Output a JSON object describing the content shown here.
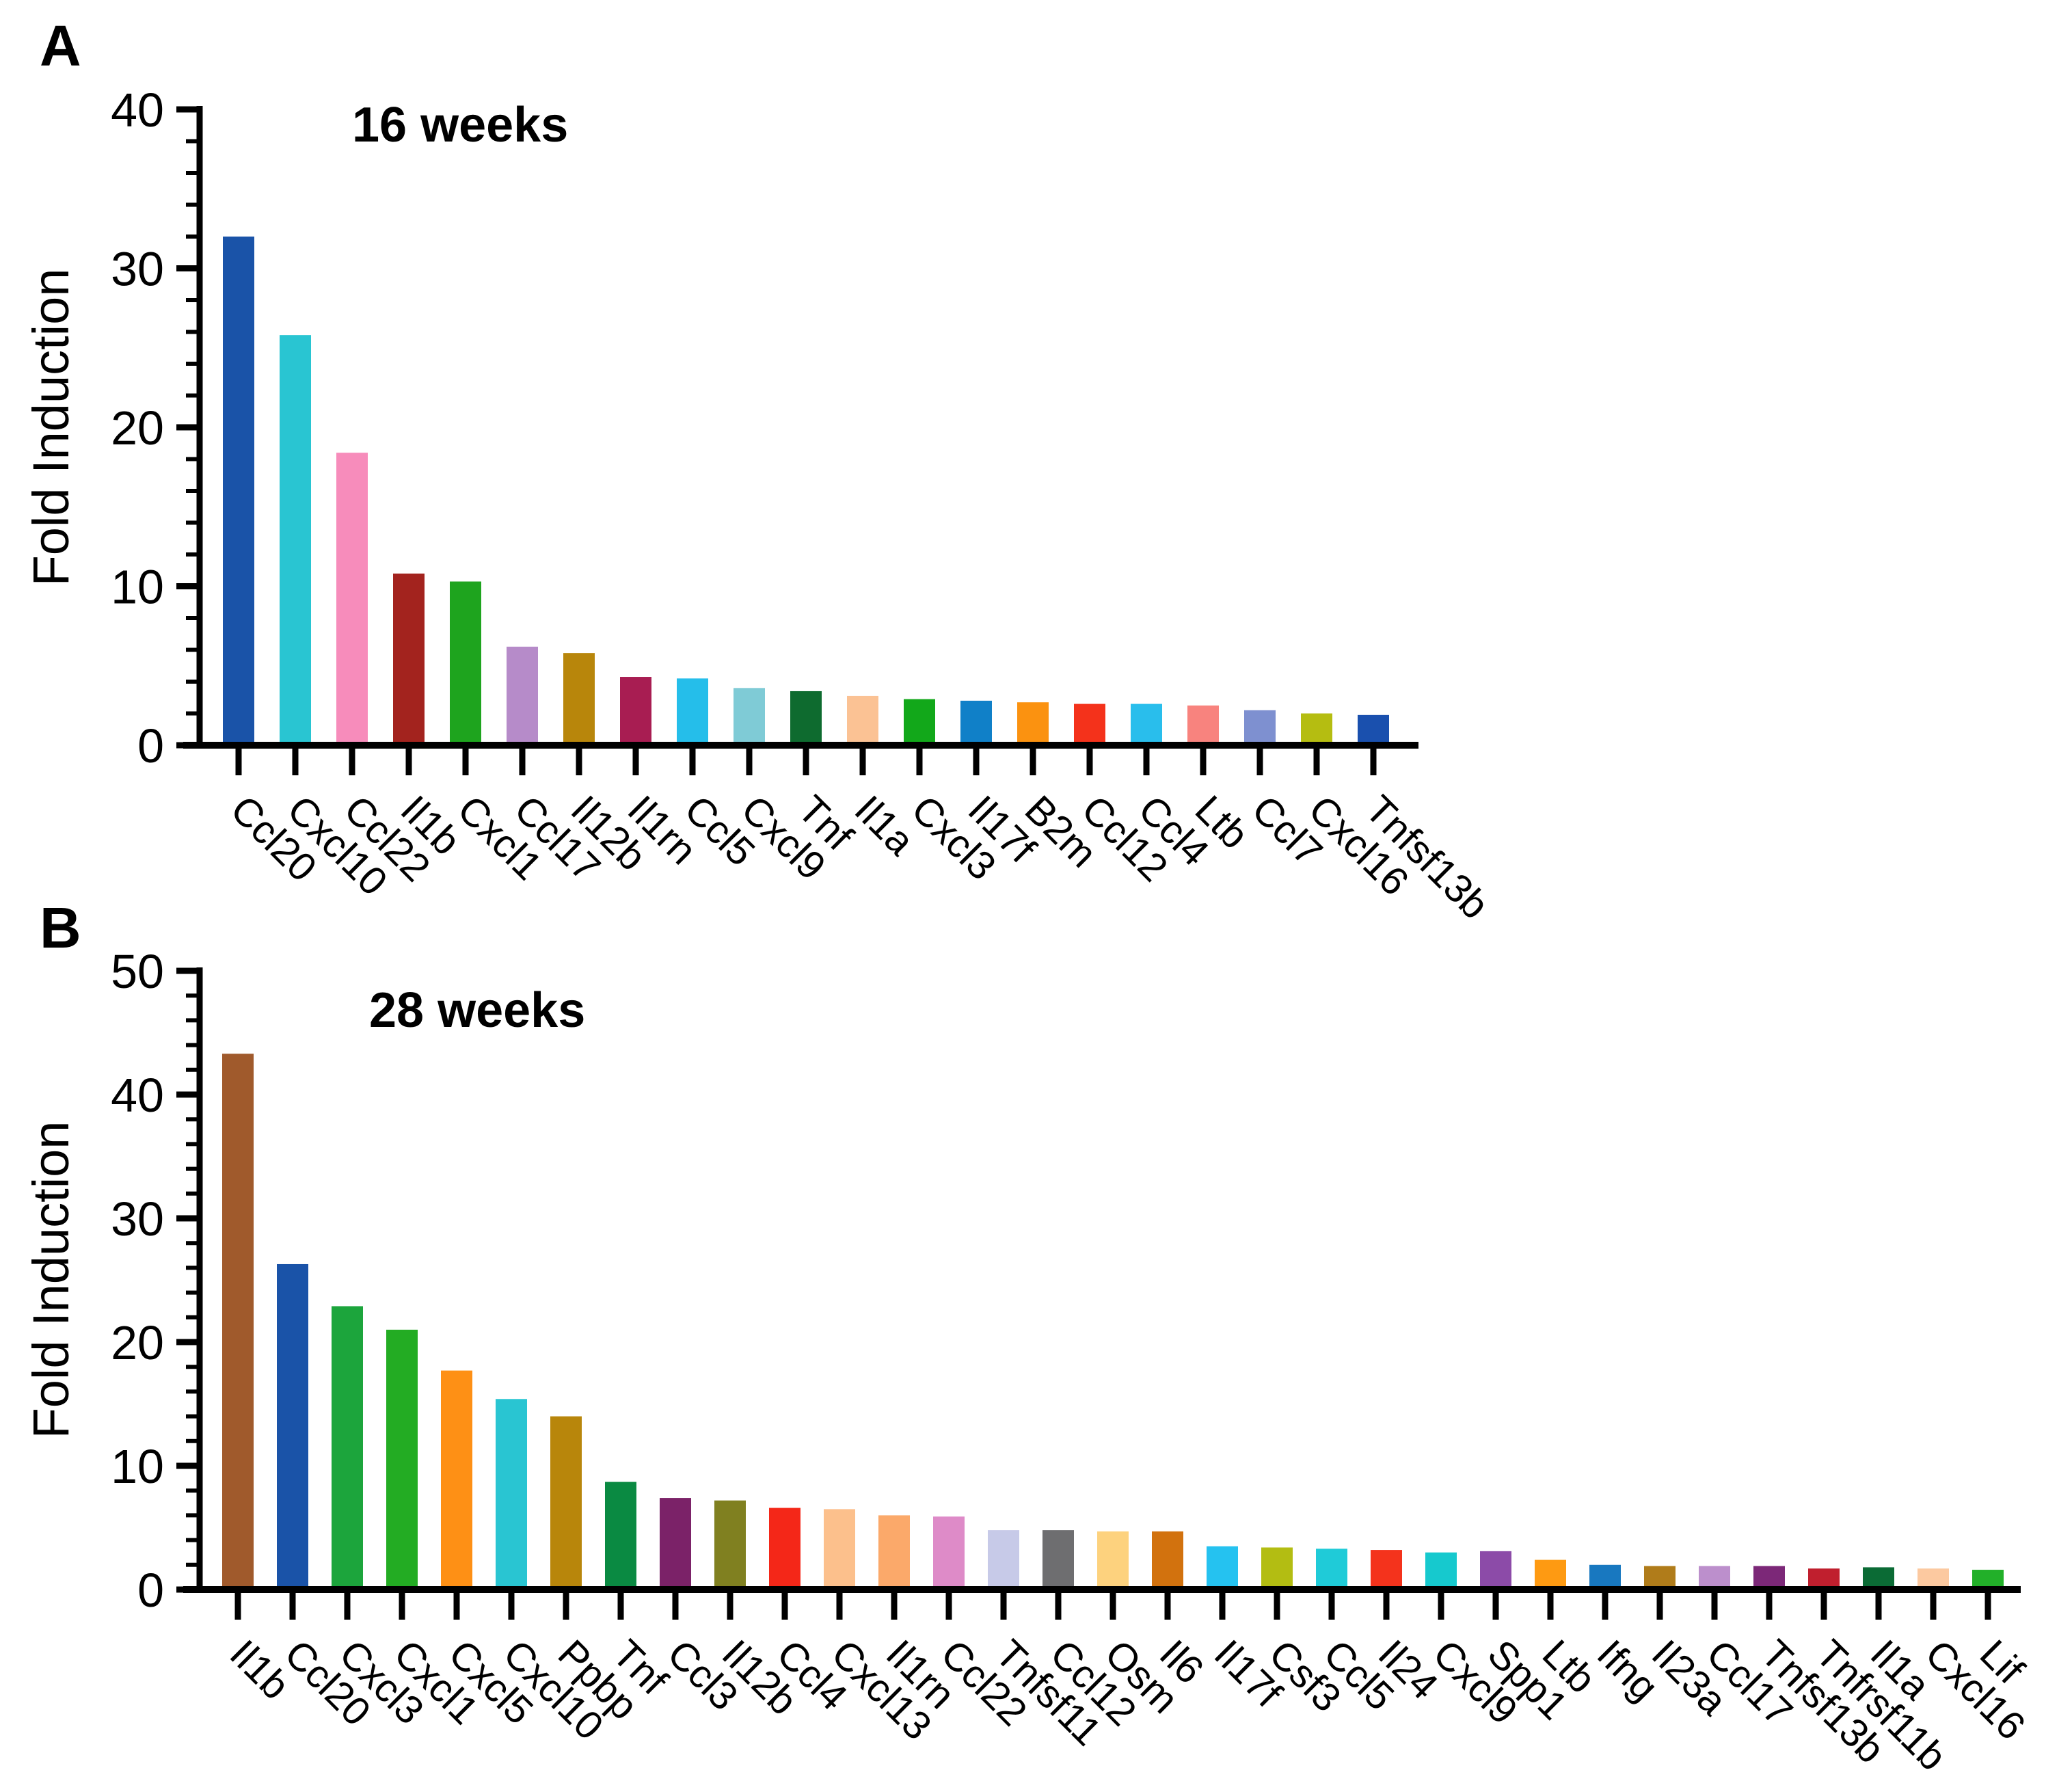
{
  "figure": {
    "background": "#ffffff"
  },
  "panels": [
    {
      "letter": "A"
    },
    {
      "letter": "B"
    }
  ],
  "chart_data": [
    {
      "type": "bar",
      "panel": "A",
      "title": "16 weeks",
      "xlabel": "",
      "ylabel": "Fold Induction",
      "ylim": [
        0,
        40
      ],
      "ytick_interval": 10,
      "yminor_interval": 2,
      "ytick_labels": [
        "0",
        "10",
        "20",
        "30",
        "40"
      ],
      "grid": false,
      "legend": "none",
      "categories": [
        "Ccl20",
        "Cxcl10",
        "Ccl22",
        "Il1b",
        "Cxcl1",
        "Ccl17",
        "Il12b",
        "Il1rn",
        "Ccl5",
        "Cxcl9",
        "Tnf",
        "Il1a",
        "Cxcl3",
        "Il17f",
        "B2m",
        "Ccl12",
        "Ccl4",
        "Ltb",
        "Ccl7",
        "Cxcl16",
        "Tnfsf13b"
      ],
      "values": [
        32.0,
        25.8,
        18.4,
        10.8,
        10.3,
        6.2,
        5.8,
        4.3,
        4.2,
        3.6,
        3.4,
        3.1,
        2.9,
        2.8,
        2.7,
        2.6,
        2.6,
        2.5,
        2.2,
        2.0,
        1.9
      ],
      "bar_colors": [
        "#1A53A8",
        "#29C5D2",
        "#F78CBB",
        "#A3231E",
        "#1EA41E",
        "#B68BC9",
        "#B8860B",
        "#A81D52",
        "#25BEEA",
        "#7FCBD6",
        "#0E6B2F",
        "#FBC294",
        "#12A81A",
        "#1080C8",
        "#FB9210",
        "#F4321B",
        "#29BEEC",
        "#F8837E",
        "#7E90D0",
        "#B5BD11",
        "#1A50AE"
      ]
    },
    {
      "type": "bar",
      "panel": "B",
      "title": "28 weeks",
      "xlabel": "",
      "ylabel": "Fold Induction",
      "ylim": [
        0,
        50
      ],
      "ytick_interval": 10,
      "yminor_interval": 2,
      "ytick_labels": [
        "0",
        "10",
        "20",
        "30",
        "40",
        "50"
      ],
      "grid": false,
      "legend": "none",
      "categories": [
        "Il1b",
        "Ccl20",
        "Cxcl3",
        "Cxcl1",
        "Cxcl5",
        "Cxcl10",
        "Ppbp",
        "Tnf",
        "Ccl3",
        "Il12b",
        "Ccl4",
        "Cxcl13",
        "Il1rn",
        "Ccl22",
        "Tnfsf11",
        "Ccl12",
        "Osm",
        "Il6",
        "Il17f",
        "Csf3",
        "Ccl5",
        "Il24",
        "Cxcl9",
        "Spp1",
        "Ltb",
        "Ifng",
        "Il23a",
        "Ccl17",
        "Tnfsf13b",
        "Tnfrsf11b",
        "Il1a",
        "Cxcl16",
        "Lif"
      ],
      "values": [
        43.3,
        26.3,
        22.9,
        21.0,
        17.7,
        15.4,
        14.0,
        8.7,
        7.4,
        7.2,
        6.6,
        6.5,
        6.0,
        5.9,
        4.8,
        4.8,
        4.7,
        4.7,
        3.5,
        3.4,
        3.3,
        3.2,
        3.0,
        3.1,
        2.4,
        2.0,
        1.9,
        1.9,
        1.9,
        1.7,
        1.8,
        1.7,
        1.6
      ],
      "bar_colors": [
        "#A05A2C",
        "#1A53A8",
        "#1CA53C",
        "#23AC23",
        "#FE9015",
        "#29C5D2",
        "#B8860B",
        "#0A8A42",
        "#7B2268",
        "#808020",
        "#F42718",
        "#FCC08C",
        "#FBA96A",
        "#DE8BC8",
        "#C7CAE8",
        "#6E6E70",
        "#FDD27E",
        "#D2720E",
        "#25C2F0",
        "#B3BD12",
        "#1FCBD8",
        "#F4331C",
        "#16C9CE",
        "#8C4BA8",
        "#FE9A12",
        "#1878C0",
        "#B07C1A",
        "#BC8FCC",
        "#7C2878",
        "#C01F2E",
        "#0B6B35",
        "#FCC9A0",
        "#22B029"
      ]
    }
  ]
}
